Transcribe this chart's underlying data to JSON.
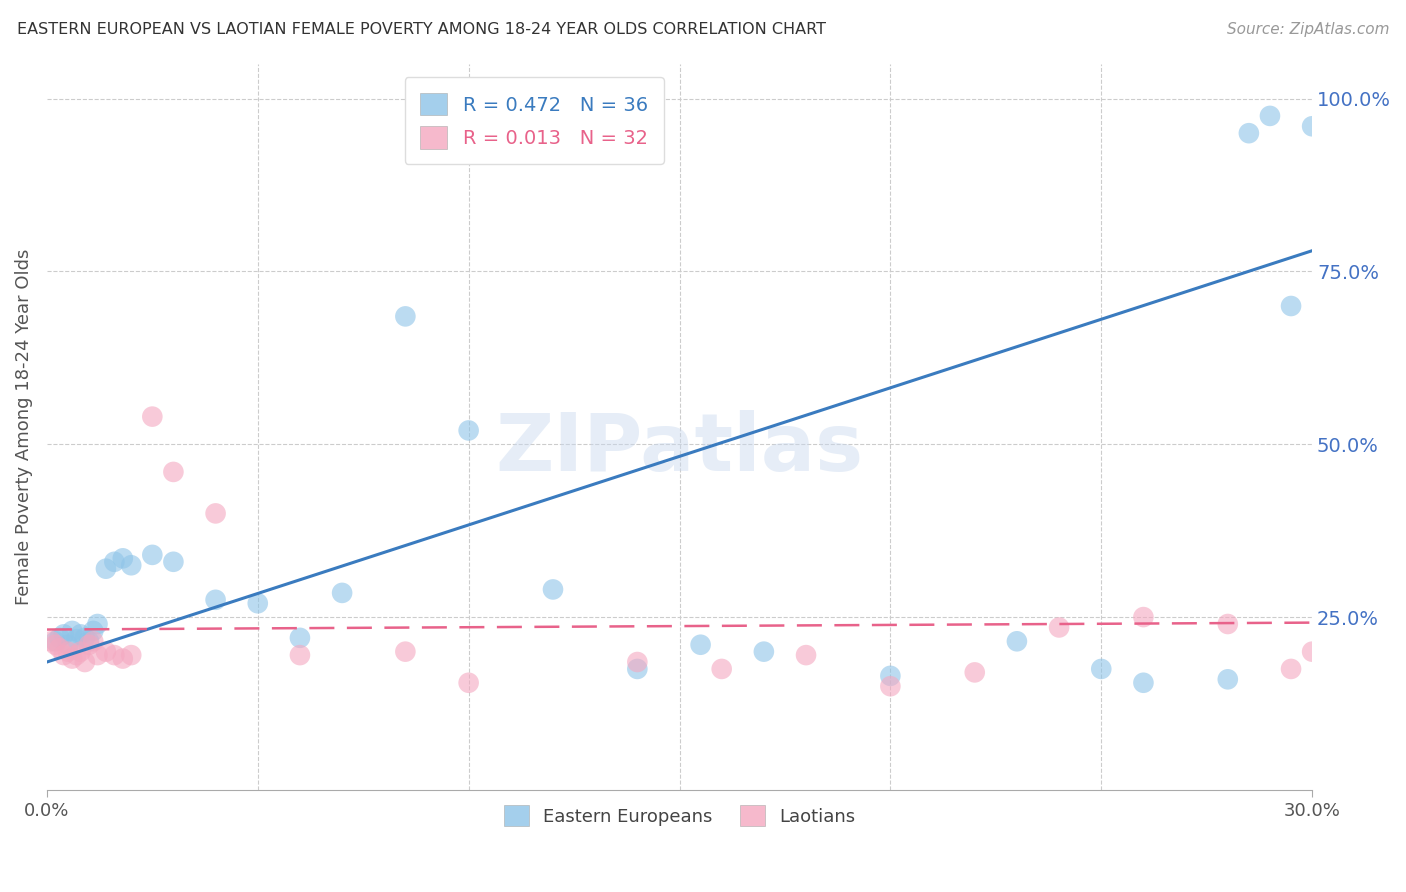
{
  "title": "EASTERN EUROPEAN VS LAOTIAN FEMALE POVERTY AMONG 18-24 YEAR OLDS CORRELATION CHART",
  "source": "Source: ZipAtlas.com",
  "ylabel": "Female Poverty Among 18-24 Year Olds",
  "xlim": [
    0.0,
    0.3
  ],
  "ylim": [
    0.0,
    1.05
  ],
  "yticks": [
    0.0,
    0.25,
    0.5,
    0.75,
    1.0
  ],
  "ytick_labels": [
    "",
    "25.0%",
    "50.0%",
    "75.0%",
    "100.0%"
  ],
  "blue_R": 0.472,
  "blue_N": 36,
  "pink_R": 0.013,
  "pink_N": 32,
  "blue_color": "#8ec4e8",
  "pink_color": "#f4a8c0",
  "blue_line_color": "#3a7bbf",
  "pink_line_color": "#e8628a",
  "watermark": "ZIPatlas",
  "legend_eastern": "Eastern Europeans",
  "legend_laotians": "Laotians",
  "blue_line_x0": 0.0,
  "blue_line_y0": 0.185,
  "blue_line_x1": 0.3,
  "blue_line_y1": 0.78,
  "pink_line_x0": 0.0,
  "pink_line_y0": 0.232,
  "pink_line_x1": 0.3,
  "pink_line_y1": 0.242,
  "blue_scatter_x": [
    0.002,
    0.003,
    0.004,
    0.005,
    0.006,
    0.007,
    0.008,
    0.009,
    0.01,
    0.011,
    0.012,
    0.014,
    0.016,
    0.018,
    0.02,
    0.025,
    0.03,
    0.04,
    0.05,
    0.06,
    0.07,
    0.085,
    0.1,
    0.12,
    0.14,
    0.155,
    0.17,
    0.2,
    0.23,
    0.25,
    0.26,
    0.28,
    0.285,
    0.29,
    0.295,
    0.3
  ],
  "blue_scatter_y": [
    0.215,
    0.22,
    0.225,
    0.21,
    0.23,
    0.218,
    0.225,
    0.22,
    0.215,
    0.23,
    0.24,
    0.32,
    0.33,
    0.335,
    0.325,
    0.34,
    0.33,
    0.275,
    0.27,
    0.22,
    0.285,
    0.685,
    0.52,
    0.29,
    0.175,
    0.21,
    0.2,
    0.165,
    0.215,
    0.175,
    0.155,
    0.16,
    0.95,
    0.975,
    0.7,
    0.96
  ],
  "pink_scatter_x": [
    0.001,
    0.002,
    0.003,
    0.004,
    0.005,
    0.006,
    0.007,
    0.008,
    0.009,
    0.01,
    0.011,
    0.012,
    0.014,
    0.016,
    0.018,
    0.02,
    0.025,
    0.03,
    0.04,
    0.06,
    0.085,
    0.1,
    0.14,
    0.16,
    0.18,
    0.2,
    0.22,
    0.24,
    0.26,
    0.28,
    0.295,
    0.3
  ],
  "pink_scatter_y": [
    0.215,
    0.21,
    0.205,
    0.195,
    0.2,
    0.19,
    0.195,
    0.2,
    0.185,
    0.21,
    0.215,
    0.195,
    0.2,
    0.195,
    0.19,
    0.195,
    0.54,
    0.46,
    0.4,
    0.195,
    0.2,
    0.155,
    0.185,
    0.175,
    0.195,
    0.15,
    0.17,
    0.235,
    0.25,
    0.24,
    0.175,
    0.2
  ]
}
